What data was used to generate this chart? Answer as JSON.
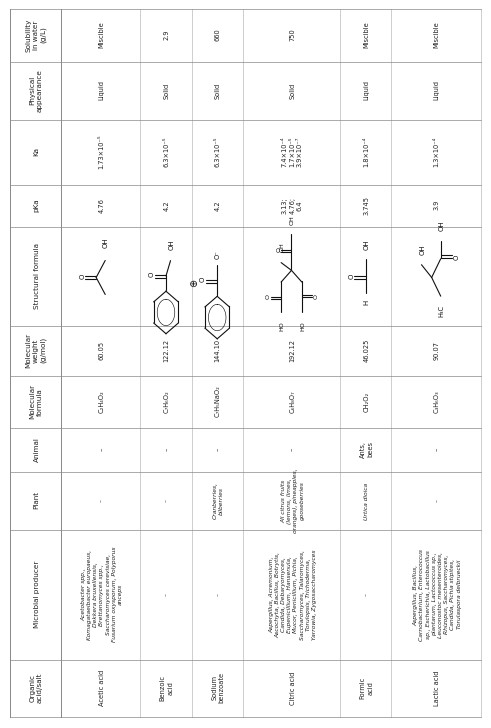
{
  "columns": [
    "Organic\nacid/salt",
    "Microbial producer",
    "Plant",
    "Animal",
    "Molecular\nformula",
    "Molecular\nweight\n(g/mol)",
    "Structural formula",
    "pKa",
    "Ka",
    "Physical\nappearance",
    "Solubility\nin water\n(g/L)"
  ],
  "rows": [
    {
      "acid": "Acetic acid",
      "microbial": "Acetobacter spp.,\nKomagataeibacter europaeus,\nDekkera bruxellensis,\nBrettanomyces spp.,\nSaccharomyces cerevisiae,\nFusarium oxysporum, Polyporus\nanceps",
      "plant": "–",
      "animal": "–",
      "mol_formula": "C₂H₄O₂",
      "mol_weight": "60.05",
      "pka": "4.76",
      "ka": "1.73×10⁻⁵",
      "physical": "Liquid",
      "solubility": "Miscible"
    },
    {
      "acid": "Benzoic\nacid",
      "microbial": "–",
      "plant": "–",
      "animal": "–",
      "mol_formula": "C₇H₆O₂",
      "mol_weight": "122.12",
      "pka": "4.2",
      "ka": "6.3×10⁻⁵",
      "physical": "Solid",
      "solubility": "2.9"
    },
    {
      "acid": "Sodium\nbenzoate",
      "microbial": "–",
      "plant": "Cranberries,\nbilberries",
      "animal": "–",
      "mol_formula": "C₇H₅NaO₂",
      "mol_weight": "144.10",
      "pka": "4.2",
      "ka": "6.3×10⁻⁵",
      "physical": "Solid",
      "solubility": "660"
    },
    {
      "acid": "Citric acid",
      "microbial": "Aspergillus, Acremonium,\nAscochyta, Bacillus, Botrytis,\nCandida, Debaryomyces,\nEupenicillium, Hansenula,\nMucor, Penicillium, Pichia,\nSaccharomyces, Talaromyces,\nTorulopsis, Trichoderma,\nYarrowia, Zygosaccharomyces",
      "plant": "All citrus fruits\n(lemons, limes,\noranges), pineapples,\ngooseberries",
      "animal": "–",
      "mol_formula": "C₆H₈O₇",
      "mol_weight": "192.12",
      "pka": "3.13;\n4.76;\n6.4",
      "ka": "7.4×10⁻⁴\n1.7×10⁻⁵\n3.9×10⁻⁷",
      "physical": "Solid",
      "solubility": "750"
    },
    {
      "acid": "Formic\nacid",
      "microbial": "–",
      "plant": "Urtica dioica",
      "animal": "Ants,\nbees",
      "mol_formula": "CH₂O₂",
      "mol_weight": "46.025",
      "pka": "3.745",
      "ka": "1.8×10⁻⁴",
      "physical": "Liquid",
      "solubility": "Miscible"
    },
    {
      "acid": "Lactic acid",
      "microbial": "Aspergillus, Bacillus,\nCarnobacterium, Enterococcus\nsp., Escherichia, Lactobacillus\nplantarum, Lactococcus sp.,\nLeuconostoc mesenteroides,\nRhizopus, Saccharomyces,\nCandida, Pichia stipites,\nTorulaspora delbrueckii",
      "plant": "–",
      "animal": "–",
      "mol_formula": "C₃H₆O₃",
      "mol_weight": "90.07",
      "pka": "3.9",
      "ka": "1.3×10⁻⁴",
      "physical": "Liquid",
      "solubility": "Miscible"
    }
  ],
  "bg_color": "#ffffff",
  "text_color": "#222222",
  "line_color": "#999999",
  "font_size": 4.8,
  "header_font_size": 5.2,
  "italic_font_size": 4.3
}
